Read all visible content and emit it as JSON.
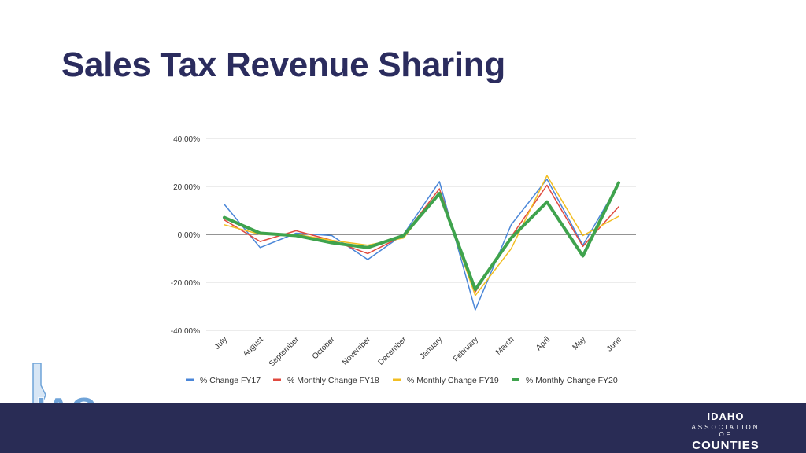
{
  "slide": {
    "title": "Sales Tax Revenue Sharing"
  },
  "logo": {
    "text": "IAC",
    "icon": "idaho-state-outline"
  },
  "brand": {
    "line1": "IDAHO",
    "line2": "ASSOCIATION OF",
    "line3": "COUNTIES"
  },
  "colors": {
    "title": "#2b2c5e",
    "footer": "#292c55",
    "fy17": "#4a86d8",
    "fy18": "#e04a3f",
    "fy19": "#f2be22",
    "fy20": "#3fa34d",
    "logo": "#6fa3d8"
  },
  "chart_data": {
    "type": "line",
    "title": "",
    "categories": [
      "July",
      "August",
      "September",
      "October",
      "November",
      "December",
      "January",
      "February",
      "March",
      "April",
      "May",
      "June"
    ],
    "y_ticks": [
      "40.00%",
      "20.00%",
      "0.00%",
      "-20.00%",
      "-40.00%"
    ],
    "ylim": [
      -40,
      40
    ],
    "grid": true,
    "legend_position": "bottom",
    "series": [
      {
        "name": "% Change FY17",
        "color": "#4a86d8",
        "width": 1.5,
        "values": [
          12.5,
          -5.5,
          0.5,
          -0.5,
          -10.5,
          0,
          22,
          -31.5,
          4,
          23,
          -4.5,
          21
        ]
      },
      {
        "name": "% Monthly Change FY18",
        "color": "#e04a3f",
        "width": 1.5,
        "values": [
          6,
          -3,
          1.5,
          -2.5,
          -8,
          -0.5,
          19,
          -24,
          -1,
          20.5,
          -5,
          11.5
        ]
      },
      {
        "name": "% Monthly Change FY19",
        "color": "#f2be22",
        "width": 1.5,
        "values": [
          4,
          0,
          0,
          -2.5,
          -4.5,
          -1.5,
          17.5,
          -25.5,
          -6,
          24.5,
          -0.5,
          7.5
        ]
      },
      {
        "name": "% Monthly Change FY20",
        "color": "#3fa34d",
        "width": 4,
        "values": [
          7,
          0.5,
          -0.5,
          -3.5,
          -5.5,
          -0.5,
          17,
          -23,
          -1.5,
          13.5,
          -9,
          21.5
        ]
      }
    ]
  }
}
